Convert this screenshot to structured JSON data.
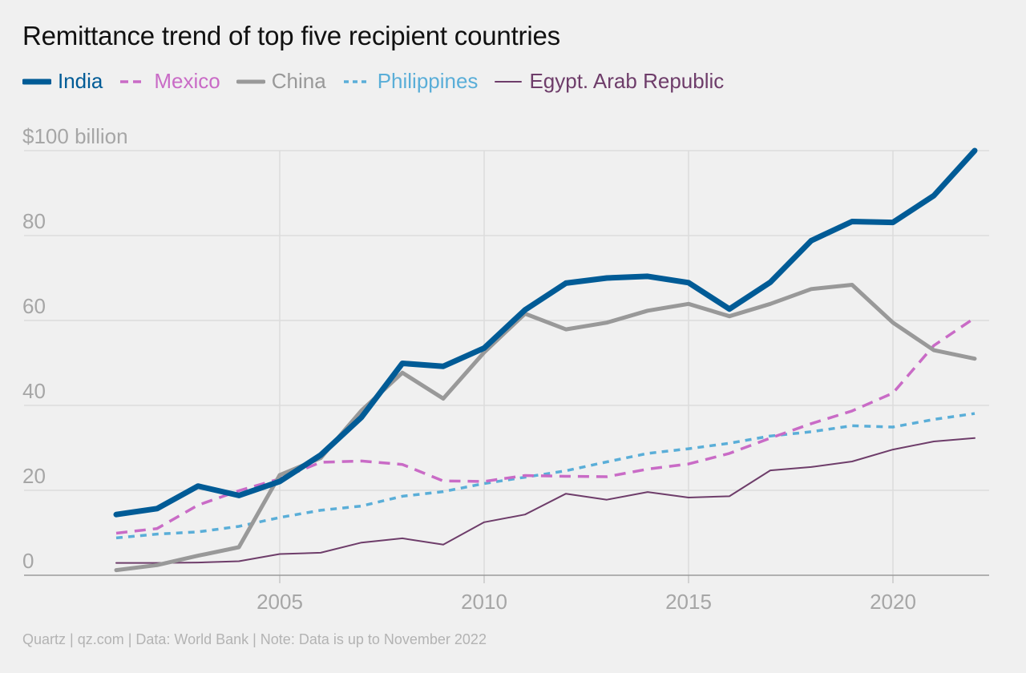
{
  "chart_data": {
    "type": "line",
    "title": "Remittance trend of top five recipient countries",
    "ylabel": "$100 billion",
    "ylim": [
      0,
      100
    ],
    "xlim": [
      2001,
      2022
    ],
    "y_ticks": [
      {
        "value": 0,
        "label": "0"
      },
      {
        "value": 20,
        "label": "20"
      },
      {
        "value": 40,
        "label": "40"
      },
      {
        "value": 60,
        "label": "60"
      },
      {
        "value": 80,
        "label": "80"
      },
      {
        "value": 100,
        "label": "$100 billion"
      }
    ],
    "x_ticks": [
      {
        "value": 2005,
        "label": "2005"
      },
      {
        "value": 2010,
        "label": "2010"
      },
      {
        "value": 2015,
        "label": "2015"
      },
      {
        "value": 2020,
        "label": "2020"
      }
    ],
    "x": [
      2001,
      2002,
      2003,
      2004,
      2005,
      2006,
      2007,
      2008,
      2009,
      2010,
      2011,
      2012,
      2013,
      2014,
      2015,
      2016,
      2017,
      2018,
      2019,
      2020,
      2021,
      2022
    ],
    "grid": "vertical and horizontal",
    "legend_position": "top-left",
    "series": [
      {
        "name": "India",
        "color": "#005b96",
        "style": "solid-thick",
        "values": [
          14.3,
          15.7,
          21.0,
          18.8,
          22.1,
          28.3,
          37.2,
          49.9,
          49.2,
          53.5,
          62.5,
          68.8,
          70.0,
          70.4,
          68.9,
          62.7,
          69.0,
          78.8,
          83.3,
          83.1,
          89.4,
          100.0
        ]
      },
      {
        "name": "Mexico",
        "color": "#c96bc6",
        "style": "dashed",
        "values": [
          9.9,
          11.0,
          16.5,
          19.9,
          22.7,
          26.6,
          26.9,
          26.1,
          22.2,
          22.1,
          23.5,
          23.3,
          23.2,
          25.0,
          26.2,
          28.7,
          32.3,
          35.7,
          38.7,
          42.9,
          54.1,
          60.6
        ]
      },
      {
        "name": "China",
        "color": "#999999",
        "style": "solid-medium",
        "values": [
          1.2,
          2.4,
          4.6,
          6.6,
          23.6,
          27.6,
          38.8,
          47.7,
          41.6,
          52.5,
          61.6,
          57.9,
          59.5,
          62.3,
          63.9,
          61.0,
          63.9,
          67.4,
          68.4,
          59.5,
          53.0,
          51.0
        ]
      },
      {
        "name": "Philippines",
        "color": "#5aaed8",
        "style": "dotted",
        "values": [
          8.8,
          9.7,
          10.2,
          11.5,
          13.6,
          15.3,
          16.3,
          18.6,
          19.7,
          21.6,
          23.1,
          24.6,
          26.7,
          28.7,
          29.8,
          31.1,
          32.8,
          33.8,
          35.2,
          34.9,
          36.7,
          38.1
        ]
      },
      {
        "name": "Egypt. Arab Republic",
        "color": "#6e3d6a",
        "style": "solid-thin",
        "values": [
          2.9,
          2.9,
          3.0,
          3.3,
          5.0,
          5.3,
          7.7,
          8.7,
          7.2,
          12.5,
          14.3,
          19.2,
          17.8,
          19.6,
          18.3,
          18.6,
          24.7,
          25.5,
          26.8,
          29.6,
          31.5,
          32.3
        ]
      }
    ]
  },
  "footer": "Quartz | qz.com | Data: World Bank | Note: Data is up to November 2022"
}
